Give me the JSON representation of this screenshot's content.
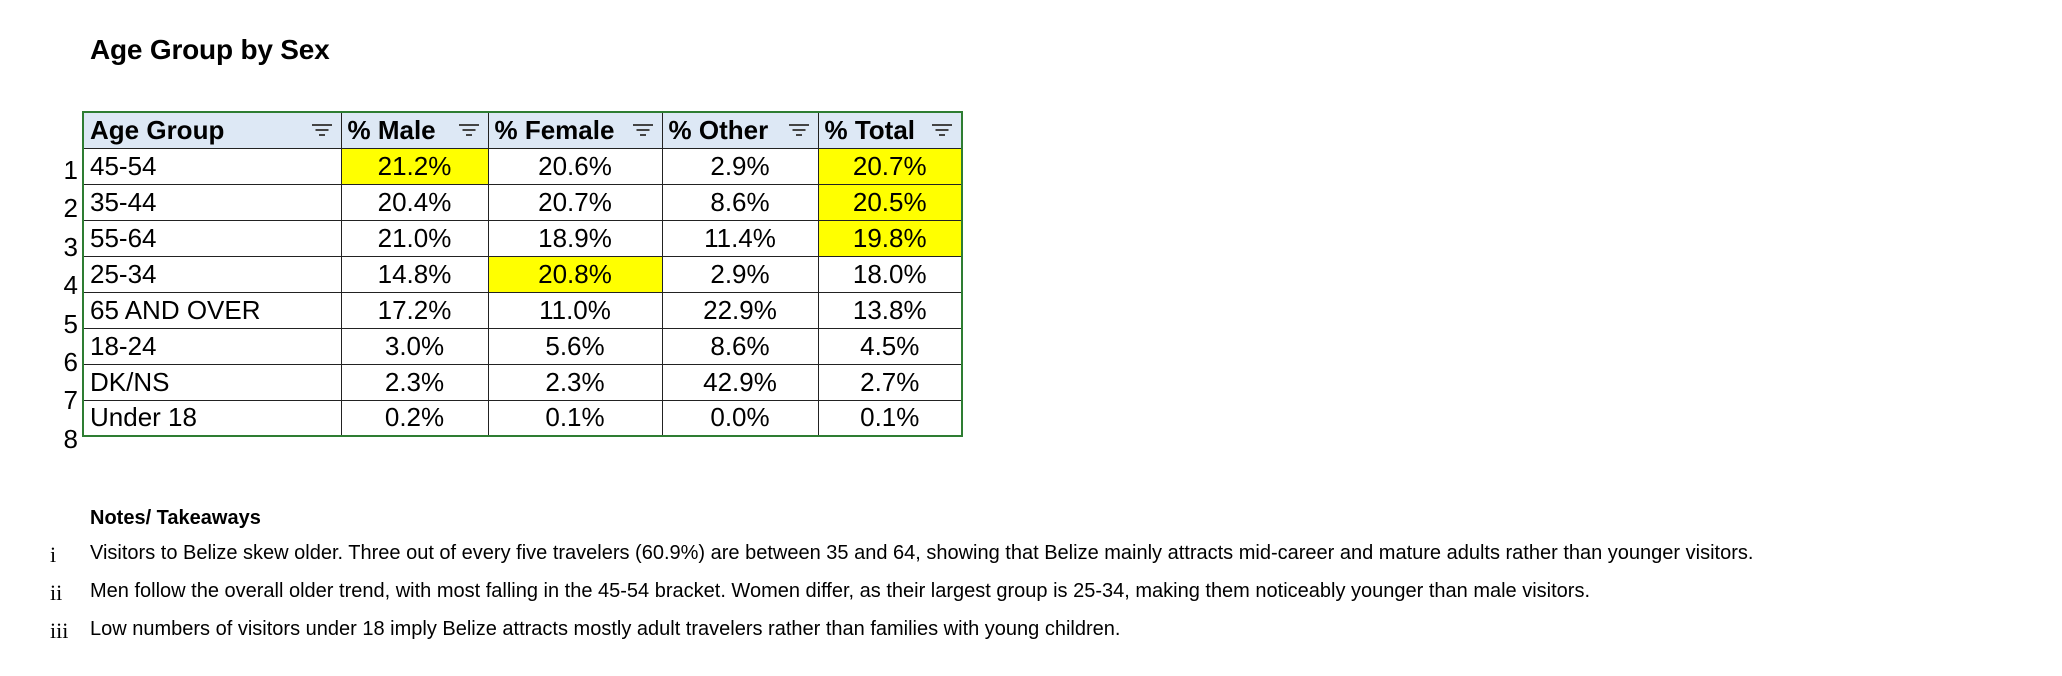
{
  "title": "Age Group by Sex",
  "table": {
    "headers": [
      "Age Group",
      "% Male",
      "% Female",
      "% Other",
      "% Total"
    ],
    "rows": [
      {
        "num": "1",
        "age": "45-54",
        "male": "21.2%",
        "female": "20.6%",
        "other": "2.9%",
        "total": "20.7%"
      },
      {
        "num": "2",
        "age": "35-44",
        "male": "20.4%",
        "female": "20.7%",
        "other": "8.6%",
        "total": "20.5%"
      },
      {
        "num": "3",
        "age": "55-64",
        "male": "21.0%",
        "female": "18.9%",
        "other": "11.4%",
        "total": "19.8%"
      },
      {
        "num": "4",
        "age": "25-34",
        "male": "14.8%",
        "female": "20.8%",
        "other": "2.9%",
        "total": "18.0%"
      },
      {
        "num": "5",
        "age": "65 AND OVER",
        "male": "17.2%",
        "female": "11.0%",
        "other": "22.9%",
        "total": "13.8%"
      },
      {
        "num": "6",
        "age": "18-24",
        "male": "3.0%",
        "female": "5.6%",
        "other": "8.6%",
        "total": "4.5%"
      },
      {
        "num": "7",
        "age": "DK/NS",
        "male": "2.3%",
        "female": "2.3%",
        "other": "42.9%",
        "total": "2.7%"
      },
      {
        "num": "8",
        "age": "Under 18",
        "male": "0.2%",
        "female": "0.1%",
        "other": "0.0%",
        "total": "0.1%"
      }
    ],
    "highlight_color": "#ffff00",
    "header_bg": "#dde8f5",
    "filter_icon": "filter-icon"
  },
  "notes": {
    "heading": "Notes/ Takeaways",
    "items": [
      {
        "marker": "i",
        "text": "Visitors to Belize skew older. Three out of every five travelers (60.9%) are between 35 and 64, showing that Belize mainly attracts mid-career and mature adults rather than younger visitors."
      },
      {
        "marker": "ii",
        "text": "Men follow the overall older trend, with most falling in the 45-54 bracket. Women differ, as their largest group is 25-34, making them noticeably younger than male visitors."
      },
      {
        "marker": "iii",
        "text": "Low numbers of visitors under 18 imply Belize attracts mostly adult travelers rather than families with young children."
      }
    ]
  }
}
